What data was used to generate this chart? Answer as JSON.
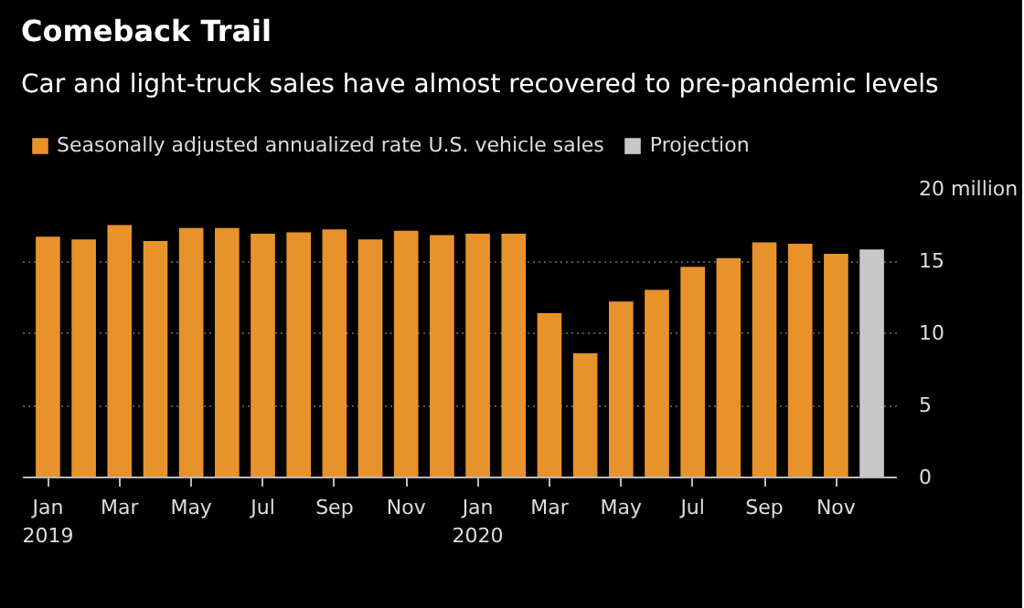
{
  "chart_data": {
    "type": "bar",
    "title": "Comeback Trail",
    "subtitle": "Car and light-truck sales have almost recovered to pre-pandemic levels",
    "categories": [
      "Jan\n2019",
      null,
      "Mar",
      null,
      "May",
      null,
      "Jul",
      null,
      "Sep",
      null,
      "Nov",
      null,
      "Jan\n2020",
      null,
      "Mar",
      null,
      "May",
      null,
      "Jul",
      null,
      "Sep",
      null,
      "Nov",
      null
    ],
    "series": [
      {
        "name": "Seasonally adjusted annualized rate U.S. vehicle sales",
        "color": "#e8922b",
        "values": [
          16.7,
          16.5,
          17.5,
          16.4,
          17.3,
          17.3,
          16.9,
          17.0,
          17.2,
          16.5,
          17.1,
          16.8,
          16.9,
          16.9,
          11.4,
          8.6,
          12.2,
          13.0,
          14.6,
          15.2,
          16.3,
          16.2,
          15.5,
          null
        ]
      },
      {
        "name": "Projection",
        "color": "#c8c8c8",
        "values": [
          null,
          null,
          null,
          null,
          null,
          null,
          null,
          null,
          null,
          null,
          null,
          null,
          null,
          null,
          null,
          null,
          null,
          null,
          null,
          null,
          null,
          null,
          null,
          15.8
        ]
      }
    ],
    "ylim": [
      0,
      20
    ],
    "yticks": [
      0,
      5,
      10,
      15,
      {
        "value": 20,
        "label": "20 million"
      }
    ],
    "grid": "y",
    "legend": "top left"
  }
}
